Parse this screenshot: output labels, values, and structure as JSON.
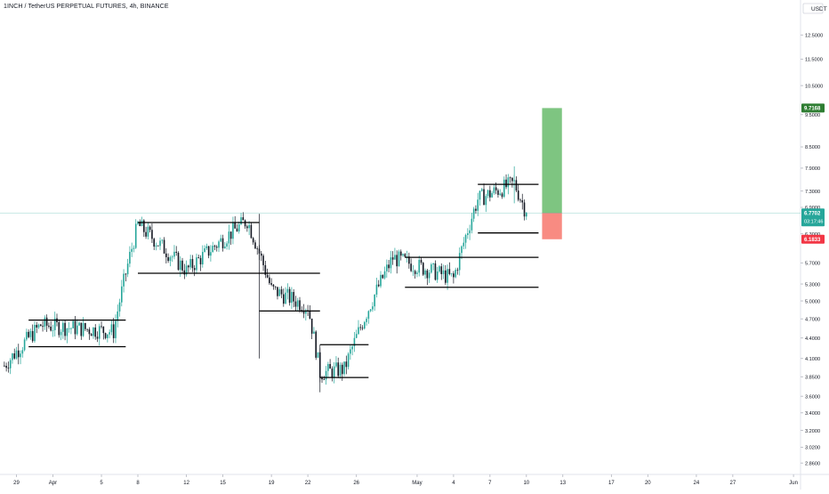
{
  "header": {
    "title": "1INCH / TetherUS PERPETUAL FUTURES, 4h, BINANCE"
  },
  "colors": {
    "up": "#26a69a",
    "down": "#131722",
    "profit": "#4caf50",
    "loss": "#f44336",
    "price_line": "#26a69a",
    "axis_text": "#131722",
    "box_line": "#000000"
  },
  "chart_data": {
    "type": "candlestick",
    "title": "1INCH / TetherUS PERPETUAL FUTURES, 4h, BINANCE",
    "currency": "USDT",
    "y_axis": {
      "scale": "log",
      "ylim": [
        2.75,
        14.1
      ],
      "ticks": [
        "12.5000",
        "11.5000",
        "10.5000",
        "9.5000",
        "8.5000",
        "7.9000",
        "7.3000",
        "6.9000",
        "6.3000",
        "5.7000",
        "5.3000",
        "5.0000",
        "4.7000",
        "4.4000",
        "4.1000",
        "3.8500",
        "3.6000",
        "3.4000",
        "3.2000",
        "3.0200",
        "2.8600"
      ]
    },
    "x_axis": {
      "ticks": [
        "29",
        "Apr",
        "5",
        "8",
        "12",
        "15",
        "19",
        "22",
        "26",
        "May",
        "4",
        "7",
        "10",
        "13",
        "17",
        "20",
        "24",
        "27",
        "Jun"
      ]
    },
    "ohlc_key_points": [
      {
        "date": "Mar 28",
        "close": 4.0
      },
      {
        "date": "Mar 31",
        "close": 4.6
      },
      {
        "date": "Apr 6",
        "close": 4.5
      },
      {
        "date": "Apr 8",
        "close": 6.5
      },
      {
        "date": "Apr 12",
        "close": 5.55
      },
      {
        "date": "Apr 17",
        "close": 6.6
      },
      {
        "date": "Apr 19",
        "close": 5.2
      },
      {
        "date": "Apr 22",
        "close": 4.9
      },
      {
        "date": "Apr 23",
        "close": 3.9
      },
      {
        "date": "Apr 25",
        "close": 3.95
      },
      {
        "date": "Apr 29",
        "close": 5.8
      },
      {
        "date": "May 4",
        "close": 5.4
      },
      {
        "date": "May 6",
        "close": 7.1
      },
      {
        "date": "May 9",
        "close": 7.5
      },
      {
        "date": "May 10",
        "close": 6.77
      }
    ],
    "ranges": [
      {
        "from": "Mar 30",
        "to": "Apr 7",
        "top": 4.68,
        "bottom": 4.27
      },
      {
        "from": "Apr 8",
        "to": "Apr 18",
        "top": 6.55,
        "bottom": 5.5
      },
      {
        "from": "Apr 18",
        "to": "Apr 23",
        "top": 5.5,
        "bottom": 4.83
      },
      {
        "from": "Apr 23",
        "to": "Apr 27",
        "top": 4.3,
        "bottom": 3.84
      },
      {
        "from": "Apr 30",
        "to": "May 11",
        "top": 5.81,
        "bottom": 5.24
      },
      {
        "from": "May 6",
        "to": "May 11",
        "top": 7.47,
        "bottom": 6.32
      }
    ],
    "position": {
      "type": "long",
      "from": "May 11",
      "to": "May 13",
      "entry": 6.7702,
      "target": 9.7168,
      "stop": 6.1833
    },
    "labels": {
      "currency": "USDT",
      "current_price": "6.7702",
      "countdown": "03:17:46",
      "target_price": "9.7168",
      "stop_price": "6.1833"
    }
  }
}
